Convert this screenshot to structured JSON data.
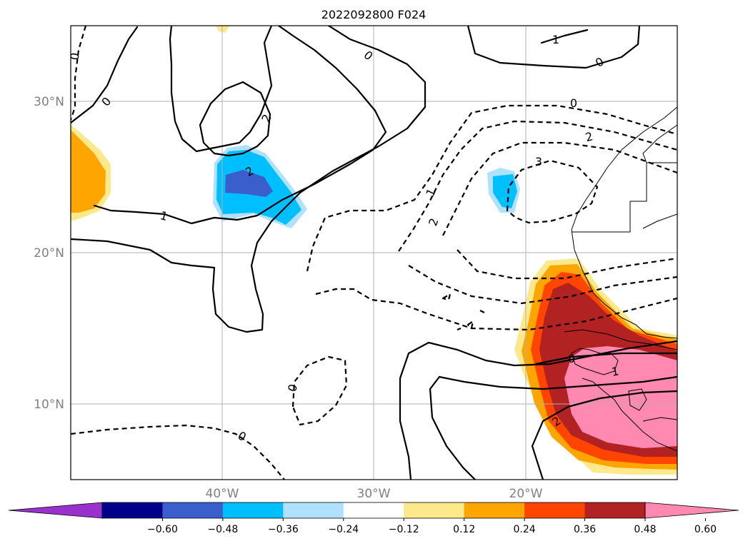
{
  "title": "2022092800 F024",
  "lat_labels": [
    "30°N",
    "20°N",
    "10°N"
  ],
  "lon_labels": [
    "40°W",
    "30°W",
    "20°W"
  ],
  "colorbar": {
    "ticks": [
      "−0.60",
      "−0.48",
      "−0.36",
      "−0.24",
      "−0.12",
      "0.12",
      "0.24",
      "0.36",
      "0.48",
      "0.60"
    ],
    "colors": [
      "#9932cc",
      "#00008b",
      "#3a5fcd",
      "#00bfff",
      "#b0e2ff",
      "#ffffff",
      "#fce98c",
      "#ffa500",
      "#ff4500",
      "#b22222",
      "#ff89b0"
    ]
  },
  "contour_labels": [
    "0",
    "0",
    "0",
    "1",
    "0",
    "2",
    "2",
    "1",
    "0",
    "2",
    "1",
    "2",
    "3",
    "0",
    "0",
    "0",
    "1",
    "2"
  ]
}
